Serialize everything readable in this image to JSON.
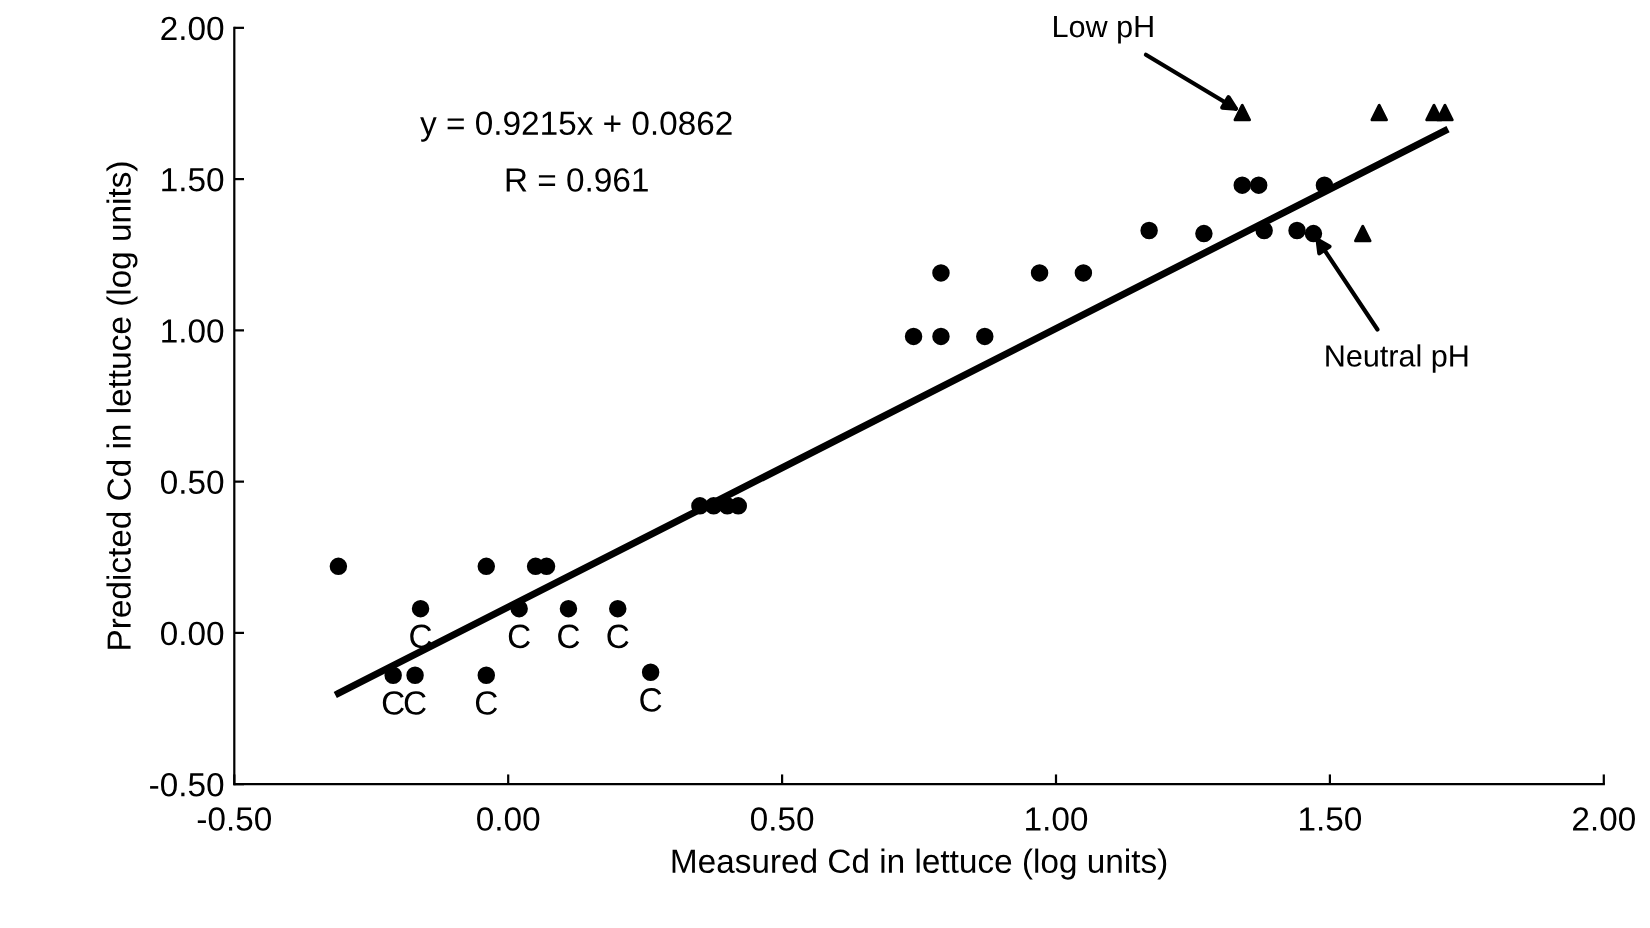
{
  "chart_data": {
    "type": "scatter",
    "xlabel": "Measured Cd in lettuce (log units)",
    "ylabel": "Predicted Cd in lettuce (log units)",
    "xlim": [
      -0.5,
      2.0
    ],
    "ylim": [
      -0.5,
      2.0
    ],
    "xticks": [
      {
        "value": -0.5,
        "label": "-0.50"
      },
      {
        "value": 0.0,
        "label": "0.00"
      },
      {
        "value": 0.5,
        "label": "0.50"
      },
      {
        "value": 1.0,
        "label": "1.00"
      },
      {
        "value": 1.5,
        "label": "1.50"
      },
      {
        "value": 2.0,
        "label": "2.00"
      }
    ],
    "yticks": [
      {
        "value": -0.5,
        "label": "-0.50"
      },
      {
        "value": 0.0,
        "label": "0.00"
      },
      {
        "value": 0.5,
        "label": "0.50"
      },
      {
        "value": 1.0,
        "label": "1.00"
      },
      {
        "value": 1.5,
        "label": "1.50"
      },
      {
        "value": 2.0,
        "label": "2.00"
      }
    ],
    "grid": false,
    "series": [
      {
        "marker": "circle",
        "color": "#000000",
        "x": [
          -0.31,
          -0.04,
          0.05,
          0.07,
          0.35,
          0.375,
          0.4,
          0.42,
          0.74,
          0.79,
          0.87,
          0.79,
          0.97,
          1.05,
          1.17,
          1.27,
          1.34,
          1.37,
          1.49,
          1.38,
          1.44,
          1.47
        ],
        "values": [
          0.22,
          0.22,
          0.22,
          0.22,
          0.42,
          0.42,
          0.42,
          0.42,
          0.98,
          0.98,
          0.98,
          1.19,
          1.19,
          1.19,
          1.33,
          1.32,
          1.48,
          1.48,
          1.48,
          1.33,
          1.33,
          1.32
        ]
      },
      {
        "marker": "circle",
        "color": "#000000",
        "x": [
          -0.16,
          0.02,
          0.11,
          0.2,
          -0.21,
          -0.17,
          -0.04,
          0.26
        ],
        "values": [
          0.08,
          0.08,
          0.08,
          0.08,
          -0.14,
          -0.14,
          -0.14,
          -0.13
        ]
      },
      {
        "marker": "triangle",
        "color": "#000000",
        "x": [
          1.34,
          1.59,
          1.69,
          1.71,
          1.56
        ],
        "values": [
          1.72,
          1.72,
          1.72,
          1.72,
          1.32
        ]
      },
      {
        "type": "line",
        "color": "#000000",
        "x": [
          -0.31,
          1.71
        ],
        "values": [
          -0.2,
          1.66
        ]
      }
    ],
    "annotations": [
      "y = 0.9215x + 0.0862",
      "R = 0.961",
      {
        "text": "Low pH",
        "x": 1.34,
        "y": 1.72
      },
      {
        "text": "Neutral pH",
        "x": 1.47,
        "y": 1.32
      },
      {
        "text": "C",
        "x": -0.16,
        "y": 0.08
      },
      {
        "text": "C",
        "x": 0.02,
        "y": 0.08
      },
      {
        "text": "C",
        "x": 0.11,
        "y": 0.08
      },
      {
        "text": "C",
        "x": 0.2,
        "y": 0.08
      },
      {
        "text": "C",
        "x": -0.21,
        "y": -0.14
      },
      {
        "text": "C",
        "x": -0.17,
        "y": -0.14
      },
      {
        "text": "C",
        "x": -0.04,
        "y": -0.14
      },
      {
        "text": "C",
        "x": 0.26,
        "y": -0.13
      }
    ]
  }
}
